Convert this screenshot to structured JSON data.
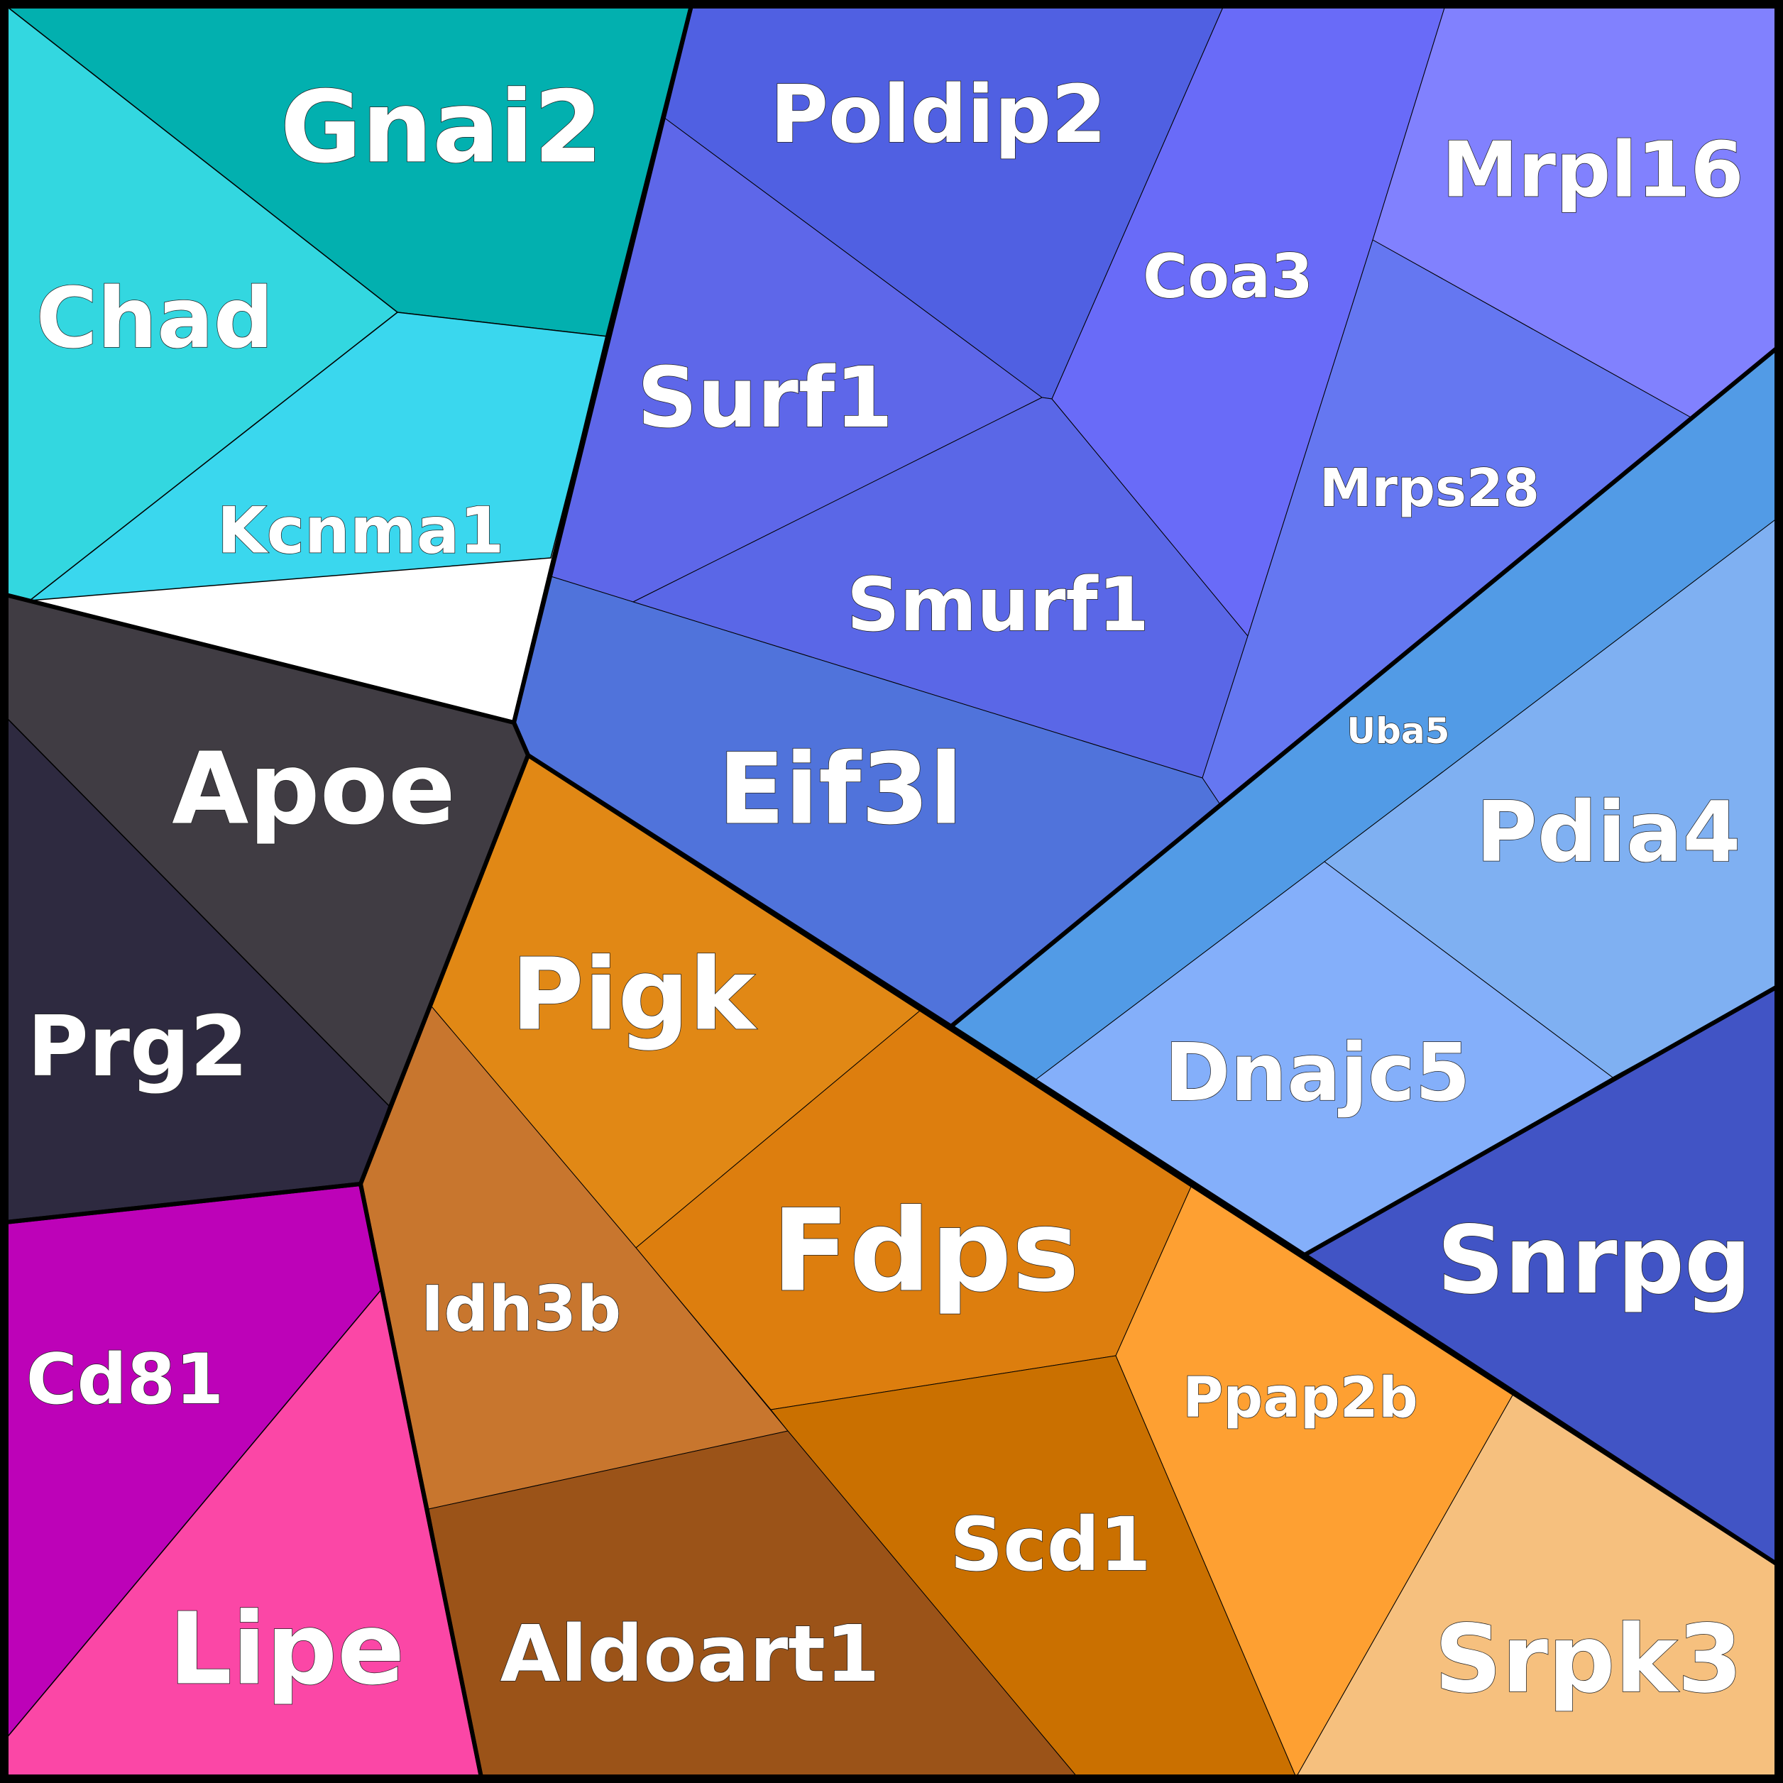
{
  "chart_data": {
    "type": "voronoi-treemap",
    "title": "",
    "groups": [
      {
        "name": "group-cyan",
        "cells": [
          {
            "label": "Gnai2",
            "color": "#02B0AF"
          },
          {
            "label": "Chad",
            "color": "#33D7E0"
          },
          {
            "label": "Kcnma1",
            "color": "#3AD7EE"
          }
        ]
      },
      {
        "name": "group-indigo",
        "cells": [
          {
            "label": "Poldip2",
            "color": "#5060E2"
          },
          {
            "label": "Surf1",
            "color": "#5E67E9"
          },
          {
            "label": "Smurf1",
            "color": "#5A67E7"
          },
          {
            "label": "Coa3",
            "color": "#696BF8"
          },
          {
            "label": "Mrpl16",
            "color": "#8181FE"
          },
          {
            "label": "Mrps28",
            "color": "#6577F1"
          },
          {
            "label": "Eif3l",
            "color": "#5073DB"
          }
        ]
      },
      {
        "name": "group-sky",
        "cells": [
          {
            "label": "Uba5",
            "color": "#529BE6"
          },
          {
            "label": "Pdia4",
            "color": "#7FB0F2"
          },
          {
            "label": "Dnajc5",
            "color": "#84AFFA"
          }
        ]
      },
      {
        "name": "group-dark",
        "cells": [
          {
            "label": "Apoe",
            "color": "#403C43"
          },
          {
            "label": "Prg2",
            "color": "#2E2A40"
          }
        ]
      },
      {
        "name": "group-orange",
        "cells": [
          {
            "label": "Pigk",
            "color": "#E18815"
          },
          {
            "label": "Fdps",
            "color": "#DD7E0E"
          },
          {
            "label": "Idh3b",
            "color": "#C8762E"
          },
          {
            "label": "Ppap2b",
            "color": "#FEA032"
          },
          {
            "label": "Scd1",
            "color": "#CA7000"
          },
          {
            "label": "Aldoart1",
            "color": "#9B5318"
          },
          {
            "label": "Srpk3",
            "color": "#F6C07E"
          }
        ]
      },
      {
        "name": "group-navy",
        "cells": [
          {
            "label": "Snrpg",
            "color": "#4154C5"
          }
        ]
      },
      {
        "name": "group-magenta",
        "cells": [
          {
            "label": "Cd81",
            "color": "#BD02B8"
          },
          {
            "label": "Lipe",
            "color": "#FB47A6"
          }
        ]
      }
    ]
  }
}
